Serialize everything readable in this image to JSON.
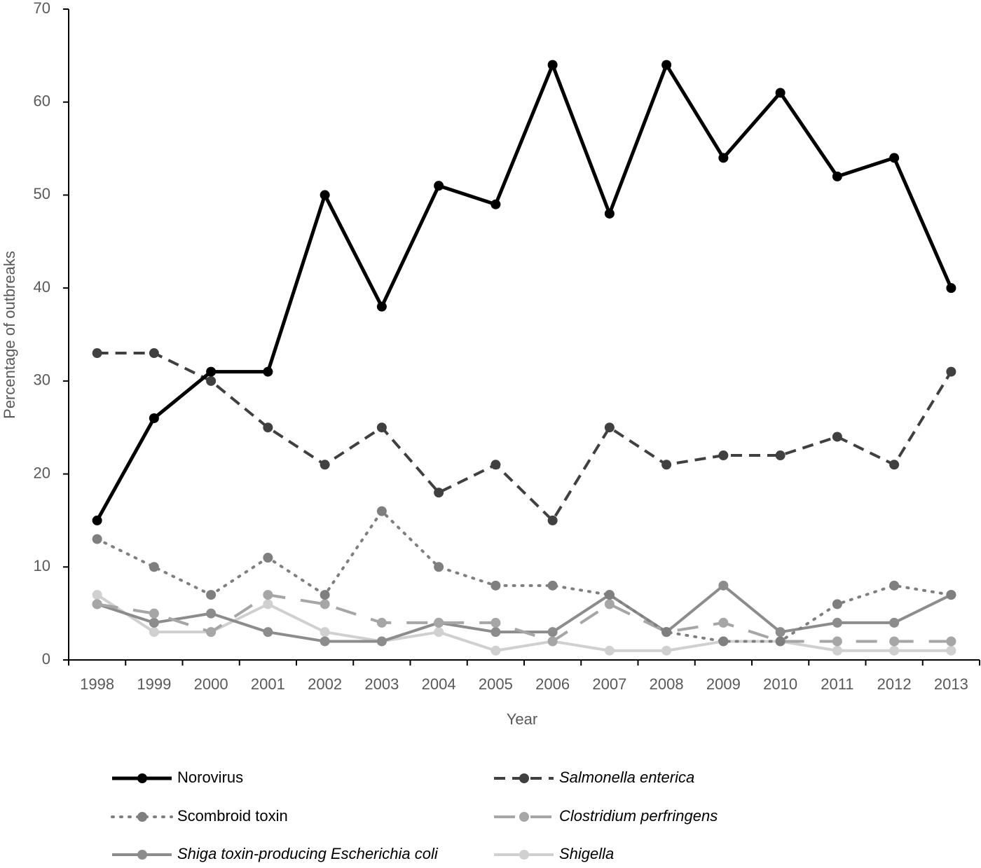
{
  "chart_data": {
    "type": "line",
    "x_label": "Year",
    "y_label": "Percentage of outbreaks",
    "categories": [
      "1998",
      "1999",
      "2000",
      "2001",
      "2002",
      "2003",
      "2004",
      "2005",
      "2006",
      "2007",
      "2008",
      "2009",
      "2010",
      "2011",
      "2012",
      "2013"
    ],
    "ylim": [
      0,
      70
    ],
    "yticks": [
      0,
      10,
      20,
      30,
      40,
      50,
      60,
      70
    ],
    "series": [
      {
        "name": "Norovirus",
        "color": "#000000",
        "dash": "solid",
        "italic": false,
        "values": [
          15,
          26,
          31,
          31,
          50,
          38,
          51,
          49,
          64,
          48,
          64,
          54,
          61,
          52,
          54,
          40
        ]
      },
      {
        "name": "Salmonella enterica",
        "color": "#404040",
        "dash": "dashed",
        "italic": true,
        "values": [
          33,
          33,
          30,
          25,
          21,
          25,
          18,
          21,
          15,
          25,
          21,
          22,
          22,
          24,
          21,
          31
        ]
      },
      {
        "name": "Scombroid toxin",
        "color": "#7f7f7f",
        "dash": "dotted",
        "italic": false,
        "values": [
          13,
          10,
          7,
          11,
          7,
          16,
          10,
          8,
          8,
          7,
          3,
          2,
          2,
          6,
          8,
          7
        ]
      },
      {
        "name": "Clostridium perfringens",
        "color": "#a6a6a6",
        "dash": "long-dash",
        "italic": true,
        "values": [
          6,
          5,
          3,
          7,
          6,
          4,
          4,
          4,
          2,
          6,
          3,
          4,
          2,
          2,
          2,
          2
        ]
      },
      {
        "name": "Shiga toxin-producing Escherichia coli",
        "color": "#8c8c8c",
        "dash": "solid",
        "italic": true,
        "values": [
          6,
          4,
          5,
          3,
          2,
          2,
          4,
          3,
          3,
          7,
          3,
          8,
          3,
          4,
          4,
          7
        ]
      },
      {
        "name": "Shigella",
        "color": "#d0d0d0",
        "dash": "solid",
        "italic": true,
        "values": [
          7,
          3,
          3,
          6,
          3,
          2,
          3,
          1,
          2,
          1,
          1,
          2,
          2,
          1,
          1,
          1
        ]
      }
    ]
  }
}
